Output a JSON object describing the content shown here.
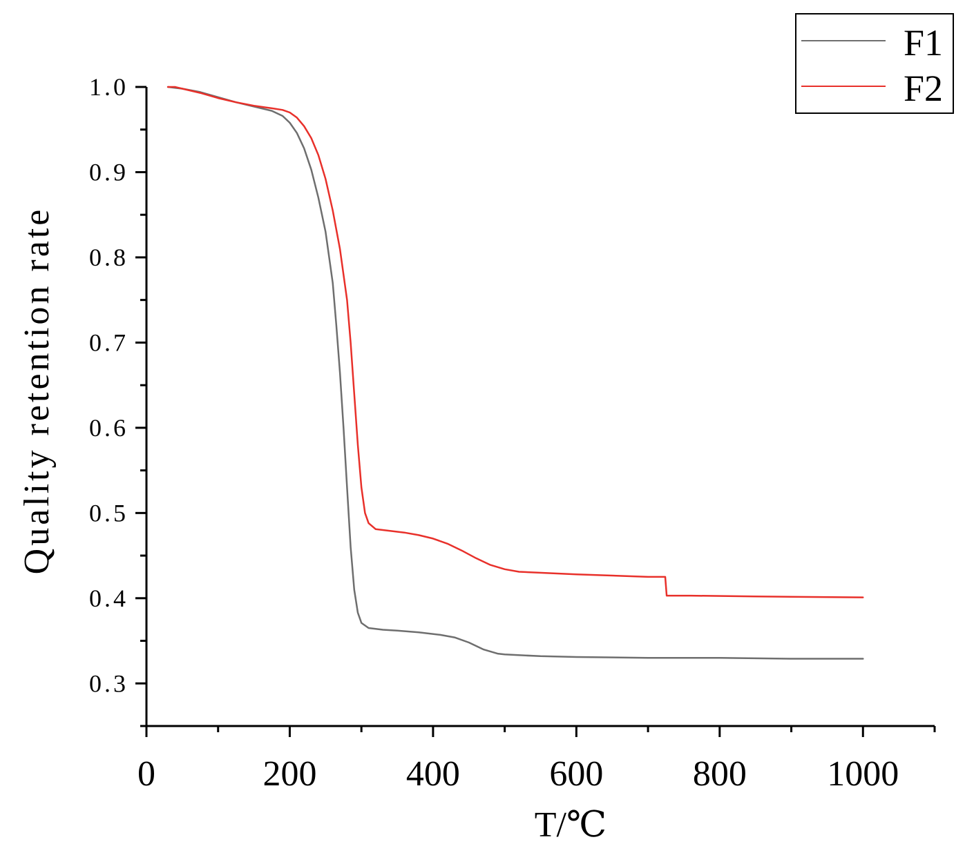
{
  "chart_data": {
    "type": "line",
    "title": "",
    "xlabel": "T/℃",
    "ylabel": "Quality retention rate",
    "xlim": [
      0,
      1100
    ],
    "ylim": [
      0.25,
      1.0
    ],
    "x_ticks": [
      0,
      200,
      400,
      600,
      800,
      1000
    ],
    "x_tick_labels": [
      "0",
      "200",
      "400",
      "600",
      "800",
      "1000"
    ],
    "y_ticks": [
      0.3,
      0.4,
      0.5,
      0.6,
      0.7,
      0.8,
      0.9,
      1.0
    ],
    "y_tick_labels": [
      "0.3",
      "0.4",
      "0.5",
      "0.6",
      "0.7",
      "0.8",
      "0.9",
      "1.0"
    ],
    "grid": false,
    "legend_position": "top-right",
    "series": [
      {
        "name": "F1",
        "color": "#6e6e6e",
        "points": [
          [
            30,
            1.0
          ],
          [
            50,
            0.998
          ],
          [
            75,
            0.994
          ],
          [
            100,
            0.988
          ],
          [
            125,
            0.982
          ],
          [
            150,
            0.977
          ],
          [
            175,
            0.972
          ],
          [
            190,
            0.966
          ],
          [
            200,
            0.958
          ],
          [
            210,
            0.946
          ],
          [
            220,
            0.928
          ],
          [
            230,
            0.903
          ],
          [
            240,
            0.87
          ],
          [
            250,
            0.83
          ],
          [
            255,
            0.8
          ],
          [
            260,
            0.77
          ],
          [
            265,
            0.72
          ],
          [
            270,
            0.665
          ],
          [
            275,
            0.6
          ],
          [
            280,
            0.53
          ],
          [
            285,
            0.46
          ],
          [
            290,
            0.41
          ],
          [
            295,
            0.383
          ],
          [
            300,
            0.371
          ],
          [
            310,
            0.365
          ],
          [
            330,
            0.363
          ],
          [
            350,
            0.362
          ],
          [
            380,
            0.36
          ],
          [
            410,
            0.357
          ],
          [
            430,
            0.354
          ],
          [
            450,
            0.348
          ],
          [
            470,
            0.34
          ],
          [
            490,
            0.335
          ],
          [
            500,
            0.334
          ],
          [
            550,
            0.332
          ],
          [
            600,
            0.331
          ],
          [
            700,
            0.33
          ],
          [
            800,
            0.33
          ],
          [
            900,
            0.329
          ],
          [
            1000,
            0.329
          ]
        ]
      },
      {
        "name": "F2",
        "color": "#e8302a",
        "points": [
          [
            30,
            1.0
          ],
          [
            40,
            1.0
          ],
          [
            50,
            0.998
          ],
          [
            75,
            0.993
          ],
          [
            100,
            0.987
          ],
          [
            125,
            0.982
          ],
          [
            150,
            0.978
          ],
          [
            175,
            0.975
          ],
          [
            190,
            0.973
          ],
          [
            200,
            0.97
          ],
          [
            210,
            0.964
          ],
          [
            220,
            0.954
          ],
          [
            230,
            0.94
          ],
          [
            240,
            0.92
          ],
          [
            250,
            0.892
          ],
          [
            260,
            0.855
          ],
          [
            270,
            0.81
          ],
          [
            280,
            0.75
          ],
          [
            285,
            0.7
          ],
          [
            290,
            0.64
          ],
          [
            295,
            0.58
          ],
          [
            300,
            0.53
          ],
          [
            305,
            0.5
          ],
          [
            310,
            0.488
          ],
          [
            320,
            0.481
          ],
          [
            340,
            0.479
          ],
          [
            360,
            0.477
          ],
          [
            380,
            0.474
          ],
          [
            400,
            0.47
          ],
          [
            420,
            0.464
          ],
          [
            440,
            0.456
          ],
          [
            460,
            0.447
          ],
          [
            480,
            0.439
          ],
          [
            500,
            0.434
          ],
          [
            520,
            0.431
          ],
          [
            600,
            0.428
          ],
          [
            700,
            0.425
          ],
          [
            724,
            0.425
          ],
          [
            726,
            0.403
          ],
          [
            760,
            0.403
          ],
          [
            850,
            0.402
          ],
          [
            1000,
            0.401
          ]
        ]
      }
    ]
  }
}
